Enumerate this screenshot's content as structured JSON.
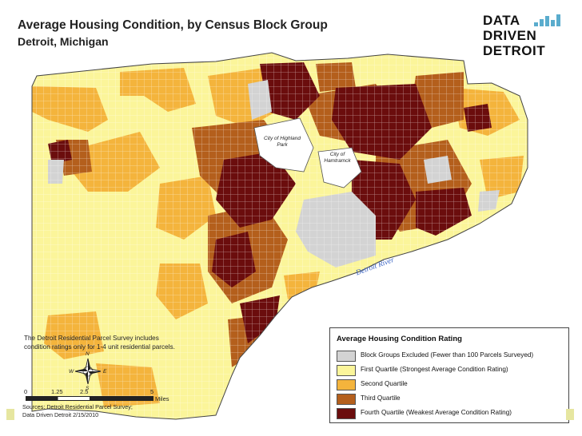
{
  "header": {
    "title": "Average Housing Condition, by Census Block Group",
    "subtitle": "Detroit, Michigan"
  },
  "logo": {
    "line1": "DATA",
    "line2": "DRIVEN",
    "line3": "DETROIT",
    "bar_color": "#5aaccd"
  },
  "map": {
    "places": {
      "highland_park": "City of Highland Park",
      "hamtramck": "City of Hamtramck"
    },
    "river_label": "Detroit River",
    "compass_letters": {
      "n": "N",
      "s": "S",
      "e": "E",
      "w": "W"
    }
  },
  "note": {
    "line1": "The Detroit Residential Parcel Survey includes",
    "line2": "condition ratings only for 1-4 unit residential parcels."
  },
  "scale_bar": {
    "ticks": [
      "0",
      "1.25",
      "2.5",
      "5"
    ],
    "unit": "Miles"
  },
  "sources": {
    "line1": "Sources: Detroit Residential Parcel Survey;",
    "line2": "Data Driven Detroit  2/15/2010"
  },
  "legend": {
    "title": "Average Housing Condition Rating",
    "items": [
      {
        "label": "Block Groups Excluded (Fewer than 100 Parcels Surveyed)",
        "color": "#d3d3d3"
      },
      {
        "label": "First Quartile (Strongest Average Condition Rating)",
        "color": "#fbf59a"
      },
      {
        "label": "Second Quartile",
        "color": "#f4b43c"
      },
      {
        "label": "Third Quartile",
        "color": "#b45f1c"
      },
      {
        "label": "Fourth Quartile (Weakest Average Condition Rating)",
        "color": "#6b0d0d"
      }
    ]
  }
}
